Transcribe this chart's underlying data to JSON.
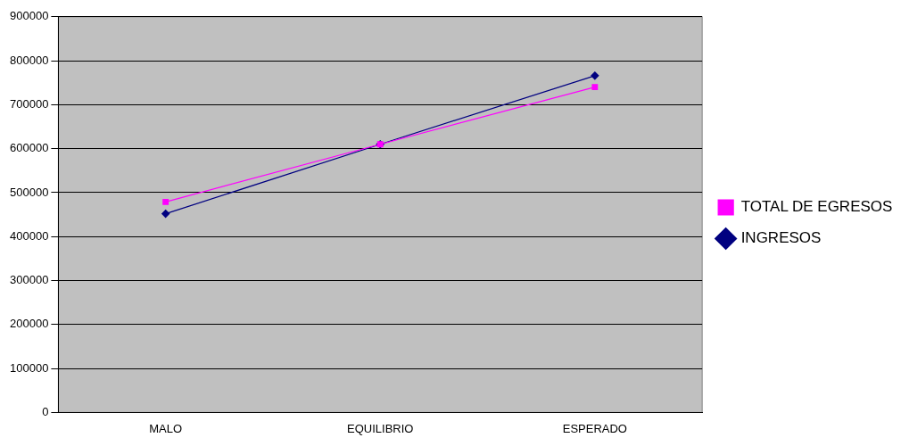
{
  "chart_data": {
    "type": "line",
    "categories": [
      "MALO",
      "EQUILIBRIO",
      "ESPERADO"
    ],
    "series": [
      {
        "name": "INGRESOS",
        "color": "#000080",
        "marker": "diamond",
        "values": [
          452000,
          610000,
          766000
        ]
      },
      {
        "name": "TOTAL DE EGRESOS",
        "color": "#ff00ff",
        "marker": "square",
        "values": [
          479000,
          610000,
          740000
        ]
      }
    ],
    "ylim": [
      0,
      900000
    ],
    "yticks": [
      0,
      100000,
      200000,
      300000,
      400000,
      500000,
      600000,
      700000,
      800000,
      900000
    ],
    "grid": "y",
    "legend": "right"
  }
}
